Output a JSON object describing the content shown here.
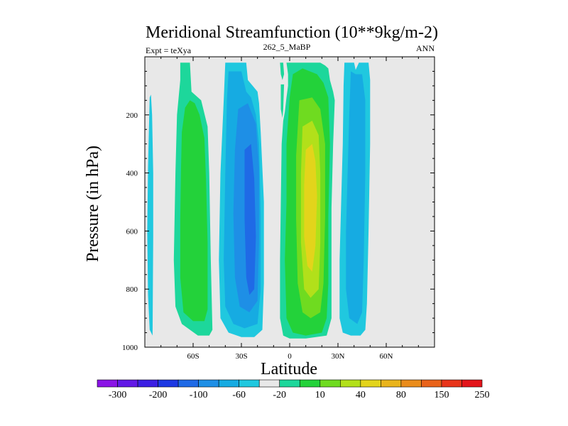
{
  "chart_data": {
    "type": "heatmap",
    "title": "Meridional Streamfunction (10**9kg/m-2)",
    "left_string": "Expt = teXya",
    "center_string": "262_5_MaBP",
    "right_string": "ANN",
    "xlabel": "Latitude",
    "ylabel": "Pressure (in hPa)",
    "xlim": [
      -90,
      90
    ],
    "ylim": [
      1000,
      0
    ],
    "x_ticks": [
      {
        "value": -60,
        "label": "60S"
      },
      {
        "value": -30,
        "label": "30S"
      },
      {
        "value": 0,
        "label": "0"
      },
      {
        "value": 30,
        "label": "30N"
      },
      {
        "value": 60,
        "label": "60N"
      }
    ],
    "y_ticks": [
      {
        "value": 200,
        "label": "200"
      },
      {
        "value": 400,
        "label": "400"
      },
      {
        "value": 600,
        "label": "600"
      },
      {
        "value": 800,
        "label": "800"
      },
      {
        "value": 1000,
        "label": "1000"
      }
    ],
    "background_color": "#e8e8e8",
    "colorbar": {
      "levels": [
        "-300",
        "-200",
        "-100",
        "-60",
        "-20",
        "10",
        "40",
        "80",
        "150",
        "250"
      ],
      "colors": [
        "#8a14e6",
        "#6218e6",
        "#3b1ee3",
        "#1c38e3",
        "#1f6ae6",
        "#1e8fe6",
        "#16abe2",
        "#20c8df",
        "#e8e8e8",
        "#1dd79b",
        "#23d23a",
        "#6fdb20",
        "#b2e01a",
        "#e3d41b",
        "#e9b41c",
        "#ea8c1b",
        "#e9631a",
        "#e8341a",
        "#e3141a"
      ]
    },
    "contours": [
      {
        "name": "far-south-negative-cell",
        "color": "#20c8df",
        "points": [
          [
            -87,
            940
          ],
          [
            -88,
            820
          ],
          [
            -88.5,
            600
          ],
          [
            -88,
            380
          ],
          [
            -87,
            140
          ],
          [
            -86.2,
            130
          ],
          [
            -85.5,
            200
          ],
          [
            -84.8,
            400
          ],
          [
            -84.8,
            620
          ],
          [
            -85,
            800
          ],
          [
            -85.2,
            960
          ]
        ]
      },
      {
        "name": "southern-positive-cell-outer",
        "color": "#1dd79b",
        "points": [
          [
            -68,
            20
          ],
          [
            -62,
            20
          ],
          [
            -61,
            120
          ],
          [
            -55,
            150
          ],
          [
            -51,
            240
          ],
          [
            -50,
            400
          ],
          [
            -49,
            700
          ],
          [
            -48,
            940
          ],
          [
            -50,
            960
          ],
          [
            -57,
            960
          ],
          [
            -62,
            940
          ],
          [
            -67,
            920
          ],
          [
            -71,
            860
          ],
          [
            -72,
            700
          ],
          [
            -71,
            400
          ],
          [
            -70,
            200
          ],
          [
            -68,
            80
          ]
        ]
      },
      {
        "name": "southern-positive-cell-core",
        "color": "#23d23a",
        "points": [
          [
            -65,
            175
          ],
          [
            -62,
            150
          ],
          [
            -59,
            160
          ],
          [
            -56,
            200
          ],
          [
            -53,
            280
          ],
          [
            -52,
            420
          ],
          [
            -51,
            640
          ],
          [
            -51,
            870
          ],
          [
            -53,
            910
          ],
          [
            -60,
            910
          ],
          [
            -66,
            880
          ],
          [
            -68,
            760
          ],
          [
            -68,
            560
          ],
          [
            -67.5,
            380
          ],
          [
            -67,
            260
          ]
        ]
      },
      {
        "name": "southern-negative-cell-outer",
        "color": "#20c8df",
        "points": [
          [
            -40,
            20
          ],
          [
            -27,
            20
          ],
          [
            -26,
            80
          ],
          [
            -23,
            100
          ],
          [
            -20,
            120
          ],
          [
            -19,
            160
          ],
          [
            -18,
            260
          ],
          [
            -16,
            500
          ],
          [
            -16,
            780
          ],
          [
            -17,
            940
          ],
          [
            -22,
            965
          ],
          [
            -30,
            965
          ],
          [
            -38,
            950
          ],
          [
            -43,
            900
          ],
          [
            -44,
            700
          ],
          [
            -43,
            400
          ],
          [
            -41,
            150
          ]
        ]
      },
      {
        "name": "southern-negative-cell-inner",
        "color": "#16abe2",
        "points": [
          [
            -38,
            50
          ],
          [
            -30,
            50
          ],
          [
            -27,
            120
          ],
          [
            -24,
            140
          ],
          [
            -21,
            200
          ],
          [
            -19,
            300
          ],
          [
            -18,
            550
          ],
          [
            -18,
            800
          ],
          [
            -20,
            920
          ],
          [
            -28,
            935
          ],
          [
            -35,
            920
          ],
          [
            -40,
            860
          ],
          [
            -41,
            700
          ],
          [
            -40,
            400
          ],
          [
            -39,
            150
          ]
        ]
      },
      {
        "name": "southern-negative-cell-mid",
        "color": "#1e8fe6",
        "points": [
          [
            -32,
            180
          ],
          [
            -26,
            160
          ],
          [
            -21,
            230
          ],
          [
            -19,
            380
          ],
          [
            -19,
            640
          ],
          [
            -20,
            840
          ],
          [
            -25,
            880
          ],
          [
            -31,
            860
          ],
          [
            -34,
            760
          ],
          [
            -35,
            540
          ],
          [
            -34,
            320
          ]
        ]
      },
      {
        "name": "southern-negative-cell-core",
        "color": "#1f6ae6",
        "points": [
          [
            -28,
            320
          ],
          [
            -24,
            300
          ],
          [
            -22,
            420
          ],
          [
            -21,
            620
          ],
          [
            -22,
            800
          ],
          [
            -25,
            820
          ],
          [
            -27,
            760
          ],
          [
            -28,
            560
          ]
        ]
      },
      {
        "name": "equator-sliver-upper",
        "color": "#1dd79b",
        "points": [
          [
            -6,
            20
          ],
          [
            -4,
            20
          ],
          [
            -3.5,
            60
          ],
          [
            -4.5,
            80
          ],
          [
            -5.5,
            60
          ]
        ]
      },
      {
        "name": "equator-sliver-lower",
        "color": "#1dd79b",
        "points": [
          [
            -5.5,
            95
          ],
          [
            -3.5,
            95
          ],
          [
            -4,
            180
          ],
          [
            -4.5,
            210
          ],
          [
            -5.5,
            180
          ]
        ]
      },
      {
        "name": "northern-positive-cell-outer",
        "color": "#1dd79b",
        "points": [
          [
            -2,
            20
          ],
          [
            19,
            20
          ],
          [
            22,
            30
          ],
          [
            24,
            40
          ],
          [
            25,
            80
          ],
          [
            27,
            120
          ],
          [
            28,
            150
          ],
          [
            27,
            300
          ],
          [
            26,
            520
          ],
          [
            26,
            720
          ],
          [
            26,
            900
          ],
          [
            23,
            960
          ],
          [
            10,
            970
          ],
          [
            0,
            970
          ],
          [
            -4,
            960
          ],
          [
            -6,
            900
          ],
          [
            -6,
            700
          ],
          [
            -5.5,
            500
          ],
          [
            -5,
            300
          ],
          [
            -4,
            220
          ],
          [
            -3,
            190
          ],
          [
            -2,
            140
          ],
          [
            -1,
            100
          ],
          [
            -1,
            60
          ]
        ]
      },
      {
        "name": "northern-positive-cell-mid",
        "color": "#23d23a",
        "points": [
          [
            2,
            60
          ],
          [
            8,
            40
          ],
          [
            17,
            60
          ],
          [
            21,
            90
          ],
          [
            24,
            140
          ],
          [
            25,
            300
          ],
          [
            24,
            550
          ],
          [
            24,
            780
          ],
          [
            23,
            900
          ],
          [
            20,
            950
          ],
          [
            10,
            960
          ],
          [
            2,
            950
          ],
          [
            -2,
            900
          ],
          [
            -3,
            700
          ],
          [
            -2,
            500
          ],
          [
            -2,
            300
          ],
          [
            0,
            140
          ]
        ]
      },
      {
        "name": "northern-positive-cell-high",
        "color": "#6fdb20",
        "points": [
          [
            6,
            150
          ],
          [
            14,
            140
          ],
          [
            19,
            180
          ],
          [
            22,
            300
          ],
          [
            22,
            550
          ],
          [
            21,
            780
          ],
          [
            19,
            880
          ],
          [
            13,
            900
          ],
          [
            8,
            880
          ],
          [
            5,
            780
          ],
          [
            4,
            560
          ],
          [
            4,
            340
          ]
        ]
      },
      {
        "name": "northern-positive-cell-higher",
        "color": "#b2e01a",
        "points": [
          [
            8,
            240
          ],
          [
            14,
            220
          ],
          [
            18,
            270
          ],
          [
            19,
            400
          ],
          [
            19,
            640
          ],
          [
            18,
            800
          ],
          [
            13,
            830
          ],
          [
            9,
            800
          ],
          [
            7,
            640
          ],
          [
            7,
            400
          ]
        ]
      },
      {
        "name": "northern-positive-cell-core",
        "color": "#e3d41b",
        "points": [
          [
            10,
            320
          ],
          [
            14,
            300
          ],
          [
            16,
            360
          ],
          [
            17,
            480
          ],
          [
            16,
            650
          ],
          [
            14,
            740
          ],
          [
            11,
            720
          ],
          [
            9,
            620
          ],
          [
            9,
            440
          ]
        ]
      },
      {
        "name": "northern-negative-cell-outer",
        "color": "#20c8df",
        "points": [
          [
            34,
            20
          ],
          [
            40,
            20
          ],
          [
            41,
            45
          ],
          [
            43,
            20
          ],
          [
            49,
            20
          ],
          [
            50,
            80
          ],
          [
            50,
            300
          ],
          [
            49,
            600
          ],
          [
            48,
            850
          ],
          [
            47,
            940
          ],
          [
            44,
            960
          ],
          [
            38,
            960
          ],
          [
            33,
            950
          ],
          [
            31,
            900
          ],
          [
            31,
            700
          ],
          [
            32,
            500
          ],
          [
            33,
            300
          ],
          [
            33.5,
            100
          ]
        ]
      },
      {
        "name": "northern-negative-cell-inner",
        "color": "#16abe2",
        "points": [
          [
            38,
            50
          ],
          [
            41,
            60
          ],
          [
            45,
            60
          ],
          [
            47,
            150
          ],
          [
            47,
            400
          ],
          [
            46,
            700
          ],
          [
            45,
            880
          ],
          [
            42,
            920
          ],
          [
            37,
            900
          ],
          [
            35,
            800
          ],
          [
            35,
            600
          ],
          [
            36,
            400
          ],
          [
            37,
            200
          ]
        ]
      }
    ]
  }
}
